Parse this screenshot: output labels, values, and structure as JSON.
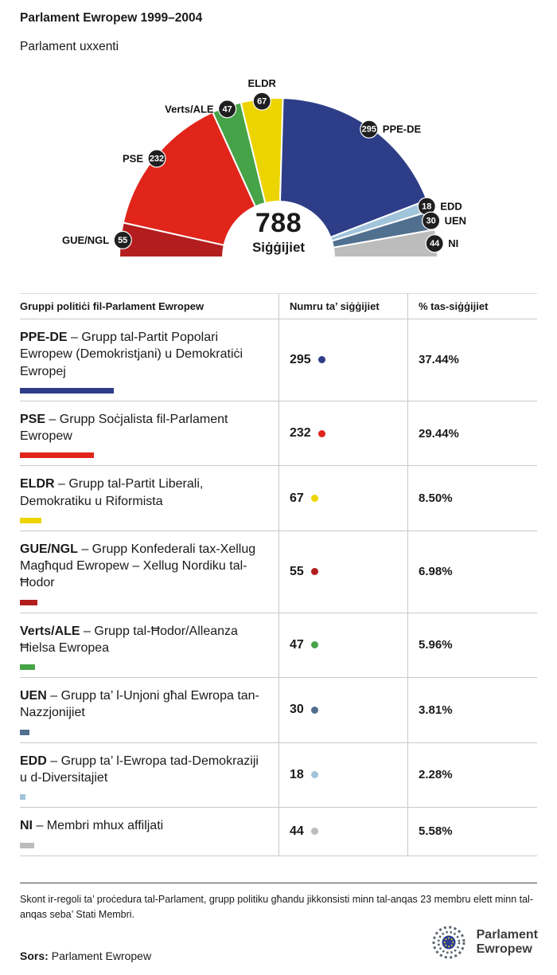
{
  "title": "Parlament Ewropew 1999–2004",
  "subtitle": "Parlament uxxenti",
  "chart_data": {
    "type": "pie",
    "shape": "hemicycle-half-donut",
    "title": "Parlament Ewropew 1999–2004",
    "center_value": "788",
    "center_label": "Siġġijiet",
    "total_seats": 788,
    "legend_position": "on-chart-badges",
    "order_left_to_right": [
      "GUE/NGL",
      "PSE",
      "Verts/ALE",
      "ELDR",
      "PPE-DE",
      "EDD",
      "UEN",
      "NI"
    ],
    "series": [
      {
        "name": "PPE-DE",
        "seats": 295,
        "percent": 37.44,
        "percent_label": "37.44%",
        "color": "#2e3d87",
        "desc": " – Grupp tal-Partit Popolari Ewropew (Demokristjani) u Demokratiċi Ewropej"
      },
      {
        "name": "PSE",
        "seats": 232,
        "percent": 29.44,
        "percent_label": "29.44%",
        "color": "#e1251b",
        "desc": " – Grupp Soċjalista fil-Parlament Ewropew"
      },
      {
        "name": "ELDR",
        "seats": 67,
        "percent": 8.5,
        "percent_label": "8.50%",
        "color": "#ecd400",
        "desc": " – Grupp tal-Partit Liberali, Demokratiku u Riformista"
      },
      {
        "name": "GUE/NGL",
        "seats": 55,
        "percent": 6.98,
        "percent_label": "6.98%",
        "color": "#b31d1d",
        "desc": " – Grupp Konfederali tax-Xellug Magħqud Ewropew – Xellug Nordiku tal-Ħodor"
      },
      {
        "name": "Verts/ALE",
        "seats": 47,
        "percent": 5.96,
        "percent_label": "5.96%",
        "color": "#46a347",
        "desc": " – Grupp tal-Ħodor/Alleanza Ħielsa Ewropea"
      },
      {
        "name": "UEN",
        "seats": 30,
        "percent": 3.81,
        "percent_label": "3.81%",
        "color": "#51708f",
        "desc": " – Grupp ta’ l-Unjoni għal Ewropa tan-Nazzjonijiet"
      },
      {
        "name": "EDD",
        "seats": 18,
        "percent": 2.28,
        "percent_label": "2.28%",
        "color": "#a0c4da",
        "desc": " – Grupp ta’ l-Ewropa tad-Demokraziji u d-Diversitajiet"
      },
      {
        "name": "NI",
        "seats": 44,
        "percent": 5.58,
        "percent_label": "5.58%",
        "color": "#bcbcbc",
        "desc": " – Membri mhux affiljati"
      }
    ]
  },
  "table": {
    "headers": [
      "Gruppi politiċi fil-Parlament Ewropew",
      "Numru ta’ siġġijiet",
      "% tas-siġġijiet"
    ]
  },
  "footnote": "Skont ir-regoli ta’ proċedura tal-Parlament, grupp politiku għandu jikkonsisti minn tal-anqas 23 membru elett minn tal-anqas seba’ Stati Membri.",
  "source": {
    "label": "Sors:",
    "value": "Parlament Ewropew"
  },
  "logo": {
    "line1": "Parlament",
    "line2": "Ewropew"
  }
}
